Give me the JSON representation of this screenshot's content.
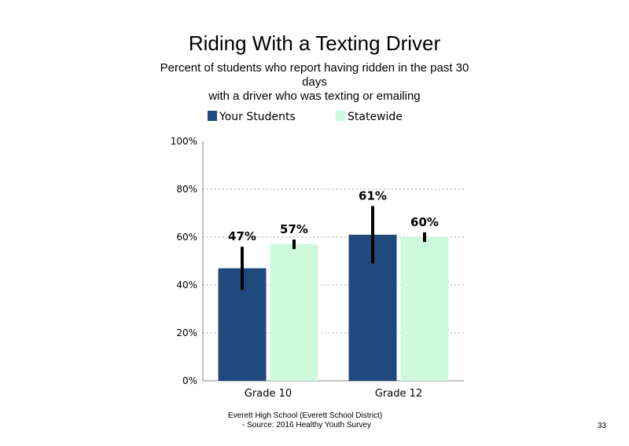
{
  "slide": {
    "title": "Riding With a Texting Driver",
    "subtitle_lines": [
      "Percent of students who report having ridden in the past 30",
      "days",
      "with a driver who was texting or emailing"
    ],
    "footer_lines": [
      "Everett High School (Everett School District)",
      "- Source: 2016 Healthy Youth Survey"
    ],
    "page_number": "33"
  },
  "chart_data": {
    "type": "bar",
    "title": "",
    "xlabel": "",
    "ylabel": "",
    "categories": [
      "Grade 10",
      "Grade 12"
    ],
    "series": [
      {
        "name": "Your Students",
        "color": "#1f497d",
        "values": [
          47,
          61
        ],
        "labels": [
          "47%",
          "61%"
        ],
        "error_low": [
          38,
          49
        ],
        "error_high": [
          56,
          73
        ]
      },
      {
        "name": "Statewide",
        "color": "#ccfadb",
        "values": [
          57,
          60
        ],
        "labels": [
          "57%",
          "60%"
        ],
        "error_low": [
          55,
          58
        ],
        "error_high": [
          59,
          62
        ]
      }
    ],
    "ylim": [
      0,
      100
    ],
    "yticks": [
      0,
      20,
      40,
      60,
      80,
      100
    ],
    "ytick_labels": [
      "0%",
      "20%",
      "40%",
      "60%",
      "80%",
      "100%"
    ],
    "grid": true,
    "legend_position": "top"
  }
}
